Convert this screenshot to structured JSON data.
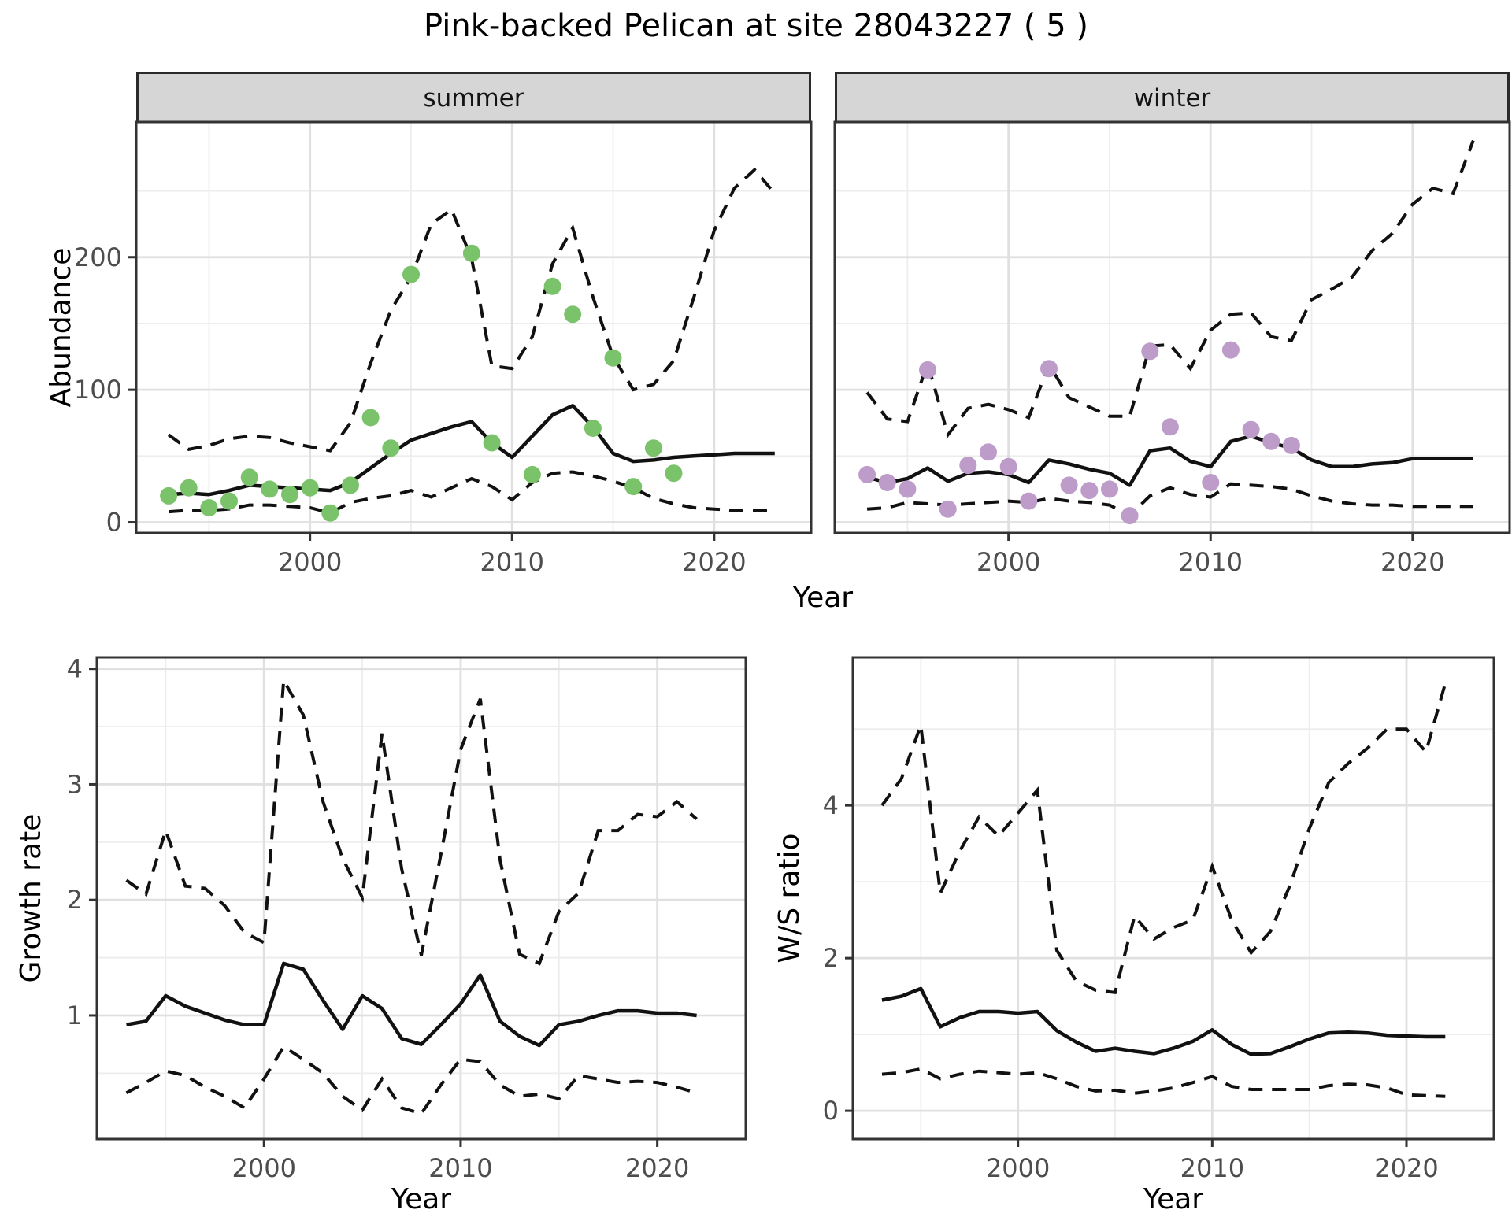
{
  "title": "Pink-backed Pelican at site 28043227 ( 5 )",
  "colors": {
    "summer_point": "#7ac36a",
    "winter_point": "#bd9cca",
    "line": "#111111",
    "strip_bg": "#d6d6d6",
    "grid_major": "#e0e0e0",
    "grid_minor": "#ededed",
    "tick_text": "#4d4d4d",
    "border": "#333333"
  },
  "chart_data": [
    {
      "id": "abundance-summer",
      "type": "line",
      "facet": "summer",
      "xlabel": "Year",
      "ylabel": "Abundance",
      "xlim": [
        1991.4,
        2024.8
      ],
      "ylim": [
        -8,
        302
      ],
      "xticks": [
        2000,
        2010,
        2020
      ],
      "xtick_labels": [
        "2000",
        "2010",
        "2020"
      ],
      "yticks": [
        0,
        100,
        200
      ],
      "ytick_labels": [
        "0",
        "100",
        "200"
      ],
      "minor_xticks": [
        1995,
        2005,
        2015
      ],
      "minor_yticks": [
        50,
        150,
        250
      ],
      "grid": true,
      "legend": "none",
      "series": {
        "years": [
          1993,
          1994,
          1995,
          1996,
          1997,
          1998,
          1999,
          2000,
          2001,
          2002,
          2003,
          2004,
          2005,
          2006,
          2007,
          2008,
          2009,
          2010,
          2011,
          2012,
          2013,
          2014,
          2015,
          2016,
          2017,
          2018,
          2019,
          2020,
          2021,
          2022,
          2023
        ],
        "median": [
          21,
          22,
          21,
          24,
          28,
          27,
          26,
          25,
          24,
          30,
          41,
          52,
          62,
          67,
          72,
          76,
          60,
          49,
          65,
          81,
          88,
          72,
          52,
          46,
          47,
          49,
          50,
          51,
          52,
          52,
          52
        ],
        "upper_ci": [
          66,
          55,
          58,
          63,
          65,
          64,
          60,
          57,
          54,
          75,
          120,
          160,
          185,
          225,
          236,
          199,
          118,
          116,
          140,
          195,
          222,
          170,
          125,
          100,
          104,
          122,
          170,
          220,
          252,
          266,
          248
        ],
        "lower_ci": [
          8,
          9,
          9,
          10,
          13,
          13,
          12,
          11,
          7,
          15,
          18,
          20,
          24,
          19,
          26,
          33,
          27,
          17,
          30,
          37,
          38,
          35,
          31,
          26,
          18,
          14,
          11,
          10,
          9,
          9,
          9
        ]
      },
      "points": {
        "years": [
          1993,
          1994,
          1995,
          1996,
          1997,
          1998,
          1999,
          2000,
          2001,
          2002,
          2003,
          2004,
          2005,
          2008,
          2009,
          2011,
          2012,
          2013,
          2014,
          2015,
          2016,
          2017,
          2018
        ],
        "values": [
          20,
          26,
          11,
          16,
          34,
          25,
          21,
          26,
          7,
          28,
          79,
          56,
          187,
          203,
          60,
          36,
          178,
          157,
          71,
          124,
          27,
          56,
          37
        ]
      }
    },
    {
      "id": "abundance-winter",
      "type": "line",
      "facet": "winter",
      "xlabel": "Year",
      "ylabel": "Abundance",
      "xlim": [
        1991.4,
        2024.8
      ],
      "ylim": [
        -8,
        302
      ],
      "xticks": [
        2000,
        2010,
        2020
      ],
      "xtick_labels": [
        "2000",
        "2010",
        "2020"
      ],
      "yticks": [
        0,
        100,
        200
      ],
      "ytick_labels": [],
      "minor_xticks": [
        1995,
        2005,
        2015
      ],
      "minor_yticks": [
        50,
        150,
        250
      ],
      "grid": true,
      "legend": "none",
      "series": {
        "years": [
          1993,
          1994,
          1995,
          1996,
          1997,
          1998,
          1999,
          2000,
          2001,
          2002,
          2003,
          2004,
          2005,
          2006,
          2007,
          2008,
          2009,
          2010,
          2011,
          2012,
          2013,
          2014,
          2015,
          2016,
          2017,
          2018,
          2019,
          2020,
          2021,
          2022,
          2023
        ],
        "median": [
          34,
          30,
          33,
          41,
          31,
          37,
          38,
          36,
          30,
          47,
          44,
          40,
          37,
          28,
          54,
          56,
          46,
          42,
          61,
          65,
          60,
          56,
          47,
          42,
          42,
          44,
          45,
          48,
          48,
          48,
          48
        ],
        "upper_ci": [
          98,
          78,
          76,
          120,
          66,
          86,
          89,
          85,
          79,
          119,
          94,
          87,
          80,
          80,
          133,
          134,
          116,
          145,
          157,
          158,
          140,
          137,
          168,
          176,
          185,
          205,
          218,
          240,
          252,
          248,
          288
        ],
        "lower_ci": [
          10,
          11,
          15,
          14,
          13,
          14,
          15,
          16,
          15,
          18,
          16,
          15,
          13,
          5,
          20,
          26,
          21,
          19,
          29,
          28,
          27,
          25,
          20,
          16,
          14,
          13,
          13,
          12,
          12,
          12,
          12
        ]
      },
      "points": {
        "years": [
          1993,
          1994,
          1995,
          1996,
          1997,
          1998,
          1999,
          2000,
          2001,
          2002,
          2003,
          2004,
          2005,
          2006,
          2007,
          2008,
          2010,
          2011,
          2012,
          2013,
          2014
        ],
        "values": [
          36,
          30,
          25,
          115,
          10,
          43,
          53,
          42,
          16,
          116,
          28,
          24,
          25,
          5,
          129,
          72,
          30,
          130,
          70,
          61,
          58
        ]
      }
    },
    {
      "id": "growth-rate",
      "type": "line",
      "facet": "",
      "xlabel": "Year",
      "ylabel": "Growth rate",
      "xlim": [
        1991.5,
        2024.5
      ],
      "ylim": [
        -0.07,
        4.1
      ],
      "xticks": [
        2000,
        2010,
        2020
      ],
      "xtick_labels": [
        "2000",
        "2010",
        "2020"
      ],
      "yticks": [
        1,
        2,
        3,
        4
      ],
      "ytick_labels": [
        "1",
        "2",
        "3",
        "4"
      ],
      "minor_xticks": [
        1995,
        2005,
        2015
      ],
      "minor_yticks": [
        0.5,
        1.5,
        2.5,
        3.5
      ],
      "grid": true,
      "legend": "none",
      "series": {
        "years": [
          1993,
          1994,
          1995,
          1996,
          1997,
          1998,
          1999,
          2000,
          2001,
          2002,
          2003,
          2004,
          2005,
          2006,
          2007,
          2008,
          2009,
          2010,
          2011,
          2012,
          2013,
          2014,
          2015,
          2016,
          2017,
          2018,
          2019,
          2020,
          2021,
          2022
        ],
        "median": [
          0.92,
          0.95,
          1.17,
          1.08,
          1.02,
          0.96,
          0.92,
          0.92,
          1.45,
          1.4,
          1.13,
          0.88,
          1.17,
          1.06,
          0.8,
          0.75,
          0.92,
          1.1,
          1.35,
          0.95,
          0.82,
          0.74,
          0.92,
          0.95,
          1.0,
          1.04,
          1.04,
          1.02,
          1.02,
          1.0
        ],
        "upper_ci": [
          2.17,
          2.05,
          2.6,
          2.12,
          2.1,
          1.95,
          1.72,
          1.63,
          3.9,
          3.6,
          2.85,
          2.36,
          2.02,
          3.44,
          2.27,
          1.52,
          2.4,
          3.3,
          3.74,
          2.35,
          1.53,
          1.45,
          1.9,
          2.06,
          2.6,
          2.6,
          2.74,
          2.72,
          2.85,
          2.7
        ],
        "lower_ci": [
          0.33,
          0.42,
          0.52,
          0.48,
          0.38,
          0.3,
          0.2,
          0.45,
          0.73,
          0.62,
          0.5,
          0.3,
          0.18,
          0.45,
          0.2,
          0.15,
          0.4,
          0.62,
          0.6,
          0.4,
          0.3,
          0.32,
          0.28,
          0.48,
          0.45,
          0.42,
          0.43,
          0.42,
          0.38,
          0.33
        ]
      },
      "points": null
    },
    {
      "id": "ws-ratio",
      "type": "line",
      "facet": "",
      "xlabel": "Year",
      "ylabel": "W/S ratio",
      "xlim": [
        1991.5,
        2024.5
      ],
      "ylim": [
        -0.37,
        5.94
      ],
      "xticks": [
        2000,
        2010,
        2020
      ],
      "xtick_labels": [
        "2000",
        "2010",
        "2020"
      ],
      "yticks": [
        0,
        2,
        4
      ],
      "ytick_labels": [
        "0",
        "2",
        "4"
      ],
      "minor_xticks": [
        1995,
        2005,
        2015
      ],
      "minor_yticks": [
        1,
        3,
        5
      ],
      "grid": true,
      "legend": "none",
      "series": {
        "years": [
          1993,
          1994,
          1995,
          1996,
          1997,
          1998,
          1999,
          2000,
          2001,
          2002,
          2003,
          2004,
          2005,
          2006,
          2007,
          2008,
          2009,
          2010,
          2011,
          2012,
          2013,
          2014,
          2015,
          2016,
          2017,
          2018,
          2019,
          2020,
          2021,
          2022
        ],
        "median": [
          1.45,
          1.5,
          1.6,
          1.1,
          1.22,
          1.3,
          1.3,
          1.28,
          1.3,
          1.05,
          0.9,
          0.78,
          0.82,
          0.78,
          0.75,
          0.82,
          0.91,
          1.06,
          0.87,
          0.74,
          0.75,
          0.84,
          0.94,
          1.02,
          1.03,
          1.02,
          0.99,
          0.98,
          0.97,
          0.97
        ],
        "upper_ci": [
          4.0,
          4.35,
          5.05,
          2.85,
          3.4,
          3.85,
          3.6,
          3.9,
          4.2,
          2.1,
          1.7,
          1.58,
          1.55,
          2.55,
          2.25,
          2.4,
          2.5,
          3.2,
          2.5,
          2.07,
          2.35,
          2.95,
          3.7,
          4.3,
          4.55,
          4.75,
          5.0,
          5.0,
          4.7,
          5.6
        ],
        "lower_ci": [
          0.48,
          0.5,
          0.55,
          0.42,
          0.48,
          0.52,
          0.5,
          0.48,
          0.5,
          0.42,
          0.32,
          0.26,
          0.27,
          0.23,
          0.26,
          0.3,
          0.37,
          0.45,
          0.32,
          0.28,
          0.28,
          0.28,
          0.28,
          0.33,
          0.35,
          0.34,
          0.3,
          0.21,
          0.2,
          0.19
        ]
      },
      "points": null
    }
  ]
}
